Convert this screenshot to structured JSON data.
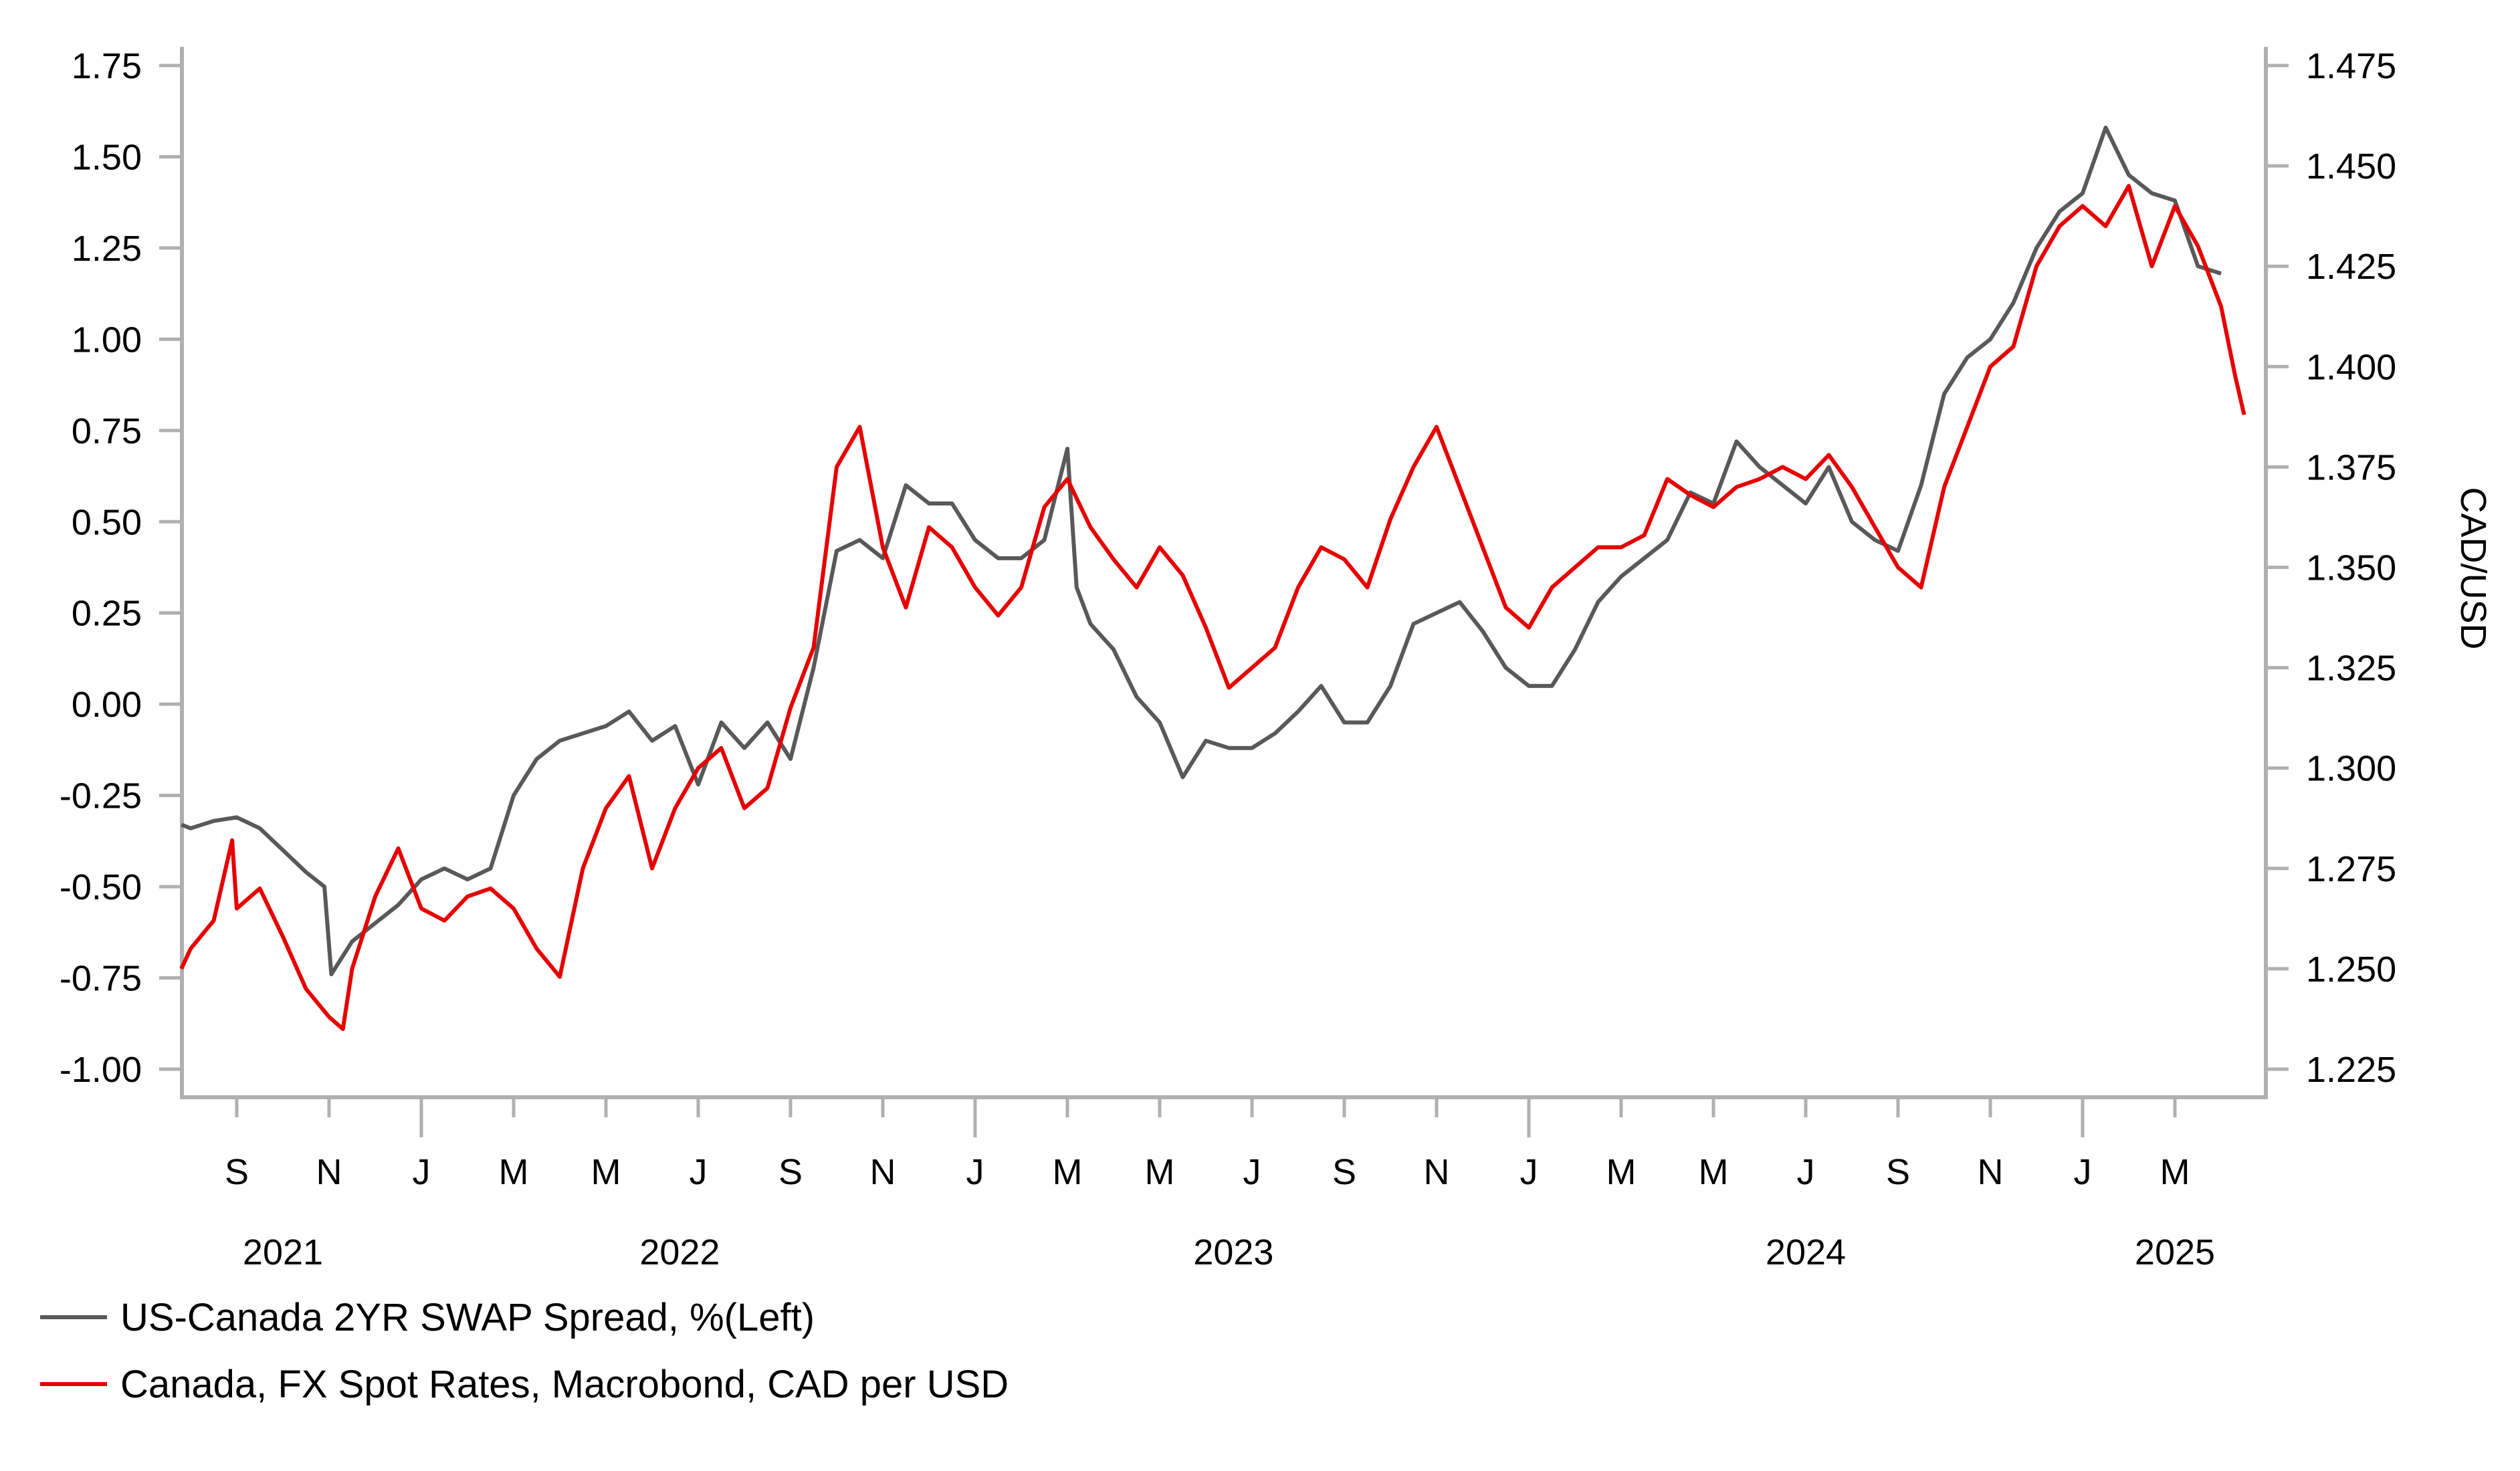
{
  "chart_data": {
    "type": "line",
    "title": "",
    "xlabel": "",
    "ylabel_left": "",
    "ylabel_right": "CAD/USD",
    "y_left": {
      "ticks": [
        "1.75",
        "1.50",
        "1.25",
        "1.00",
        "0.75",
        "0.50",
        "0.25",
        "0.00",
        "-0.25",
        "-0.50",
        "-0.75",
        "-1.00"
      ],
      "lim": [
        -1.0,
        1.75
      ]
    },
    "y_right": {
      "ticks": [
        "1.475",
        "1.450",
        "1.425",
        "1.400",
        "1.375",
        "1.350",
        "1.325",
        "1.300",
        "1.275",
        "1.250",
        "1.225"
      ],
      "lim": [
        1.225,
        1.475
      ]
    },
    "x_month_ticks": [
      {
        "label": "S",
        "t": 1
      },
      {
        "label": "N",
        "t": 3
      },
      {
        "label": "J",
        "t": 5,
        "major": true
      },
      {
        "label": "M",
        "t": 7
      },
      {
        "label": "M",
        "t": 9
      },
      {
        "label": "J",
        "t": 11
      },
      {
        "label": "S",
        "t": 13
      },
      {
        "label": "N",
        "t": 15
      },
      {
        "label": "J",
        "t": 17,
        "major": true
      },
      {
        "label": "M",
        "t": 19
      },
      {
        "label": "M",
        "t": 21
      },
      {
        "label": "J",
        "t": 23
      },
      {
        "label": "S",
        "t": 25
      },
      {
        "label": "N",
        "t": 27
      },
      {
        "label": "J",
        "t": 29,
        "major": true
      },
      {
        "label": "M",
        "t": 31
      },
      {
        "label": "M",
        "t": 33
      },
      {
        "label": "J",
        "t": 35
      },
      {
        "label": "S",
        "t": 37
      },
      {
        "label": "N",
        "t": 39
      },
      {
        "label": "J",
        "t": 41,
        "major": true
      },
      {
        "label": "M",
        "t": 43
      }
    ],
    "x_year_labels": [
      {
        "label": "2021",
        "t": 2
      },
      {
        "label": "2022",
        "t": 10.6
      },
      {
        "label": "2023",
        "t": 22.6
      },
      {
        "label": "2024",
        "t": 35
      },
      {
        "label": "2025",
        "t": 43
      }
    ],
    "x_time_unit": "months since Aug 2021",
    "grid": false,
    "legend_position": "bottom-left",
    "series": [
      {
        "name": "US-Canada 2YR SWAP Spread, %(Left)",
        "axis": "left",
        "color": "#595959",
        "t": [
          -0.2,
          0,
          0.5,
          1,
          1.5,
          2,
          2.5,
          2.9,
          3.05,
          3.5,
          4,
          4.5,
          5,
          5.5,
          6,
          6.5,
          7,
          7.5,
          8,
          8.5,
          9,
          9.5,
          10,
          10.5,
          11,
          11.5,
          12,
          12.5,
          13,
          13.5,
          14,
          14.5,
          15,
          15.5,
          16,
          16.5,
          17,
          17.5,
          18,
          18.5,
          19,
          19.2,
          19.5,
          20,
          20.5,
          21,
          21.5,
          22,
          22.5,
          23,
          23.5,
          24,
          24.5,
          25,
          25.5,
          26,
          26.5,
          27,
          27.5,
          28,
          28.5,
          29,
          29.5,
          30,
          30.5,
          31,
          31.5,
          32,
          32.5,
          33,
          33.5,
          34,
          34.5,
          35,
          35.5,
          36,
          36.5,
          37,
          37.5,
          38,
          38.5,
          39,
          39.5,
          40,
          40.5,
          41,
          41.5,
          42,
          42.5,
          43,
          43.5,
          44,
          44.5
        ],
        "values": [
          -0.33,
          -0.34,
          -0.32,
          -0.31,
          -0.34,
          -0.4,
          -0.46,
          -0.5,
          -0.74,
          -0.65,
          -0.6,
          -0.55,
          -0.48,
          -0.45,
          -0.48,
          -0.45,
          -0.25,
          -0.15,
          -0.1,
          -0.08,
          -0.06,
          -0.02,
          -0.1,
          -0.06,
          -0.22,
          -0.05,
          -0.12,
          -0.05,
          -0.15,
          0.1,
          0.42,
          0.45,
          0.4,
          0.6,
          0.55,
          0.55,
          0.45,
          0.4,
          0.4,
          0.45,
          0.7,
          0.32,
          0.22,
          0.15,
          0.02,
          -0.05,
          -0.2,
          -0.1,
          -0.12,
          -0.12,
          -0.08,
          -0.02,
          0.05,
          -0.05,
          -0.05,
          0.05,
          0.22,
          0.25,
          0.28,
          0.2,
          0.1,
          0.05,
          0.05,
          0.15,
          0.28,
          0.35,
          0.4,
          0.45,
          0.58,
          0.55,
          0.72,
          0.65,
          0.6,
          0.55,
          0.65,
          0.5,
          0.45,
          0.42,
          0.6,
          0.85,
          0.95,
          1.0,
          1.1,
          1.25,
          1.35,
          1.4,
          1.58,
          1.45,
          1.4,
          1.38,
          1.2,
          1.18
        ]
      },
      {
        "name": "Canada, FX Spot Rates, Macrobond, CAD per USD",
        "axis": "right",
        "color": "#e60000",
        "t": [
          -0.2,
          0,
          0.5,
          0.9,
          1,
          1.5,
          2,
          2.5,
          3,
          3.3,
          3.5,
          4,
          4.5,
          5,
          5.5,
          6,
          6.5,
          7,
          7.5,
          8,
          8.5,
          9,
          9.5,
          10,
          10.5,
          11,
          11.5,
          12,
          12.5,
          13,
          13.5,
          14,
          14.5,
          15,
          15.5,
          16,
          16.5,
          17,
          17.5,
          18,
          18.5,
          19,
          19.5,
          20,
          20.5,
          21,
          21.5,
          22,
          22.5,
          23,
          23.5,
          24,
          24.5,
          25,
          25.5,
          26,
          26.5,
          27,
          27.5,
          28,
          28.5,
          29,
          29.5,
          30,
          30.5,
          31,
          31.5,
          32,
          32.5,
          33,
          33.5,
          34,
          34.5,
          35,
          35.5,
          36,
          36.5,
          37,
          37.5,
          38,
          38.5,
          39,
          39.5,
          40,
          40.5,
          41,
          41.5,
          42,
          42.5,
          43,
          43.5,
          44,
          44.3,
          44.5
        ],
        "values": [
          1.25,
          1.255,
          1.262,
          1.282,
          1.265,
          1.27,
          1.258,
          1.245,
          1.238,
          1.235,
          1.25,
          1.268,
          1.28,
          1.265,
          1.262,
          1.268,
          1.27,
          1.265,
          1.255,
          1.248,
          1.275,
          1.29,
          1.298,
          1.275,
          1.29,
          1.3,
          1.305,
          1.29,
          1.295,
          1.315,
          1.33,
          1.375,
          1.385,
          1.355,
          1.34,
          1.36,
          1.355,
          1.345,
          1.338,
          1.345,
          1.365,
          1.372,
          1.36,
          1.352,
          1.345,
          1.355,
          1.348,
          1.335,
          1.32,
          1.325,
          1.33,
          1.345,
          1.355,
          1.352,
          1.345,
          1.362,
          1.375,
          1.385,
          1.37,
          1.355,
          1.34,
          1.335,
          1.345,
          1.35,
          1.355,
          1.355,
          1.358,
          1.372,
          1.368,
          1.365,
          1.37,
          1.372,
          1.375,
          1.372,
          1.378,
          1.37,
          1.36,
          1.35,
          1.345,
          1.37,
          1.385,
          1.4,
          1.405,
          1.425,
          1.435,
          1.44,
          1.435,
          1.445,
          1.425,
          1.44,
          1.43,
          1.415,
          1.398,
          1.388,
          1.39
        ]
      }
    ]
  },
  "legend": {
    "items": [
      {
        "label": "US-Canada 2YR SWAP Spread, %(Left)",
        "color": "#595959"
      },
      {
        "label": "Canada, FX Spot Rates, Macrobond, CAD per USD",
        "color": "#e60000"
      }
    ]
  }
}
